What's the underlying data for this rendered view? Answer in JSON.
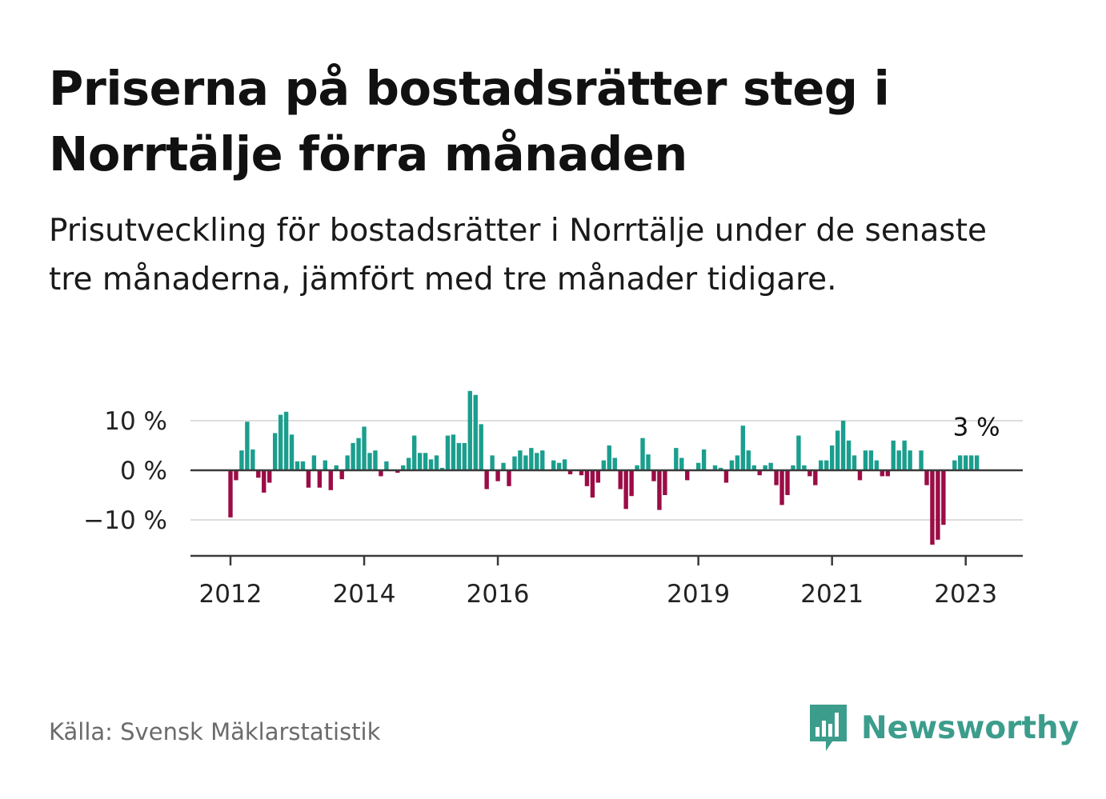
{
  "title": "Priserna på bostadsrätter steg i Norrtälje förra månaden",
  "subtitle": "Prisutveckling för bostadsrätter i Norrtälje under de senaste tre månaderna, jämfört med tre månader tidigare.",
  "source": "Källa: Svensk Mäklarstatistik",
  "brand": "Newsworthy",
  "colors": {
    "positive": "#1b9e8e",
    "negative": "#9b0c46",
    "brand": "#3c9d8c"
  },
  "chart_data": {
    "type": "bar",
    "title": "Priserna på bostadsrätter steg i Norrtälje förra månaden",
    "xlabel": "",
    "ylabel": "",
    "ylim": [
      -17,
      17
    ],
    "yticks": [
      {
        "value": 10,
        "label": "10 %"
      },
      {
        "value": 0,
        "label": "0 %"
      },
      {
        "value": -10,
        "label": "−10 %"
      }
    ],
    "xticks": [
      {
        "index": 0,
        "label": "2012"
      },
      {
        "index": 24,
        "label": "2014"
      },
      {
        "index": 48,
        "label": "2016"
      },
      {
        "index": 84,
        "label": "2019"
      },
      {
        "index": 108,
        "label": "2021"
      },
      {
        "index": 132,
        "label": "2023"
      }
    ],
    "x_start": "2012-01",
    "annotation": {
      "text": "3 %",
      "value": 3
    },
    "values": [
      -9.5,
      -2,
      4,
      9.8,
      4.2,
      -1.5,
      -4.5,
      -2.5,
      7.5,
      11.2,
      11.8,
      7.2,
      1.8,
      1.8,
      -3.5,
      3,
      -3.5,
      2,
      -4,
      1,
      -1.8,
      3,
      5.5,
      6.5,
      8.8,
      3.5,
      4,
      -1.2,
      1.8,
      0,
      -0.5,
      1,
      2.5,
      7,
      3.5,
      3.5,
      2.2,
      3,
      0.5,
      7,
      7.2,
      5.5,
      5.5,
      16,
      15.2,
      9.3,
      -3.8,
      3,
      -2.2,
      1.5,
      -3.2,
      2.8,
      4,
      3,
      4.5,
      3.5,
      4,
      0,
      2,
      1.5,
      2.2,
      -0.8,
      0,
      -1,
      -3.2,
      -5.5,
      -2.5,
      2,
      5,
      2.5,
      -3.8,
      -7.8,
      -5.2,
      1,
      6.5,
      3.2,
      -2.2,
      -8,
      -5,
      0,
      4.5,
      2.5,
      -2,
      0,
      1.5,
      4.2,
      0,
      1,
      0.5,
      -2.5,
      2,
      3,
      9,
      4,
      1,
      -1,
      1,
      1.5,
      -3,
      -7,
      -5,
      1,
      7,
      1,
      -1.2,
      -3,
      2,
      2,
      5,
      8,
      10,
      6,
      3,
      -2,
      4,
      4,
      2,
      -1.2,
      -1.2,
      6,
      4,
      6,
      4,
      0,
      4,
      -3,
      -15,
      -14,
      -11,
      0,
      2,
      3,
      3,
      3,
      3
    ]
  }
}
